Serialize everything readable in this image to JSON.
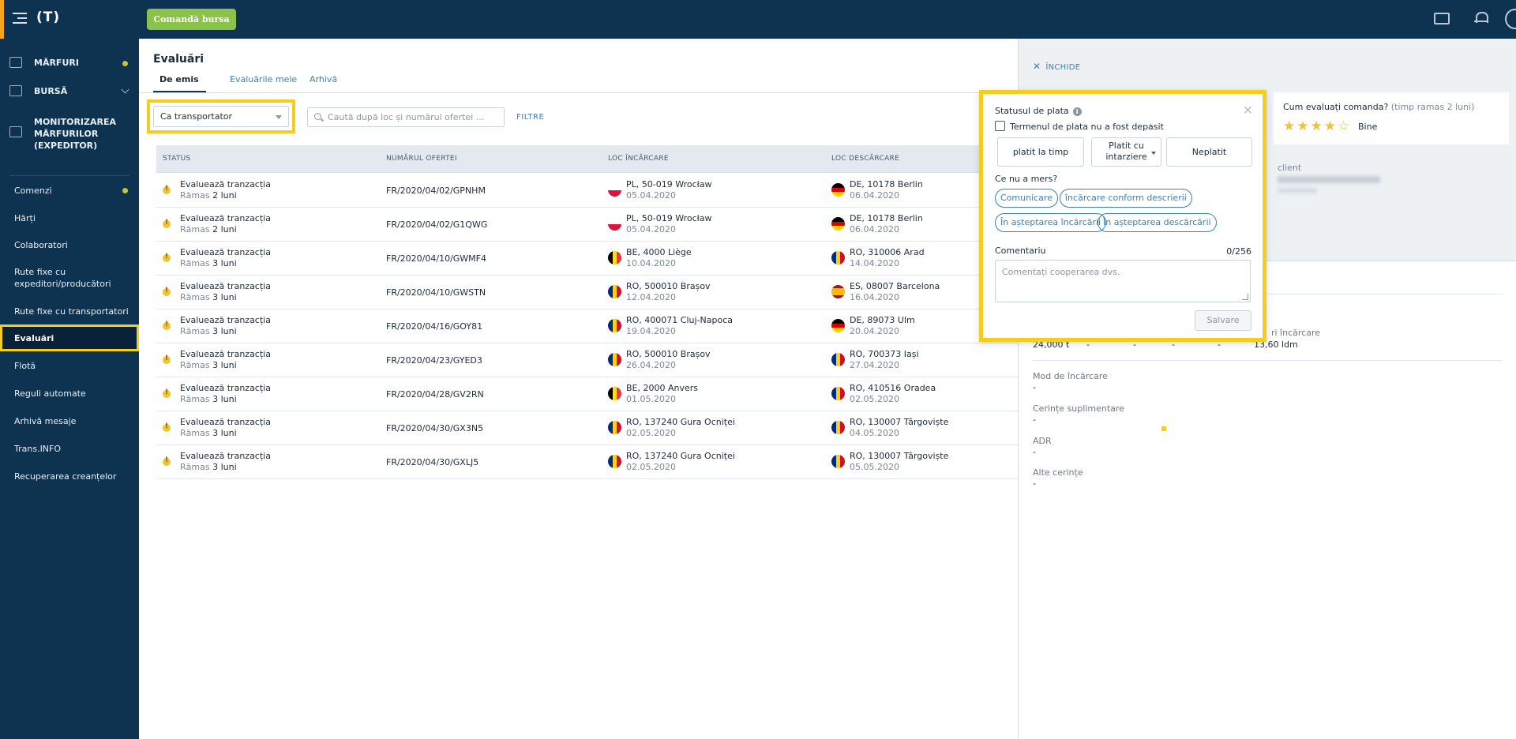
{
  "topbar": {
    "logo": "(T)",
    "bursa_button": "Comandă bursa",
    "colors": {
      "bg": "#0e3350",
      "accent": "#8bc34a"
    }
  },
  "sidebar": {
    "main_items": [
      {
        "label": "MĂRFURI",
        "icon": "goods-icon",
        "dot": true
      },
      {
        "label": "BURSĂ",
        "icon": "box-icon",
        "chevron": true
      },
      {
        "label": "MONITORIZAREA MĂRFURILOR (EXPEDITOR)",
        "icon": "tracking-icon"
      }
    ],
    "items": [
      {
        "label": "Comenzi",
        "dot": true
      },
      {
        "label": "Hărți"
      },
      {
        "label": "Colaboratori"
      },
      {
        "label": "Rute fixe cu expeditori/producători"
      },
      {
        "label": "Rute fixe cu transportatori"
      },
      {
        "label": "Evaluări",
        "active": true
      },
      {
        "label": "Flotă"
      },
      {
        "label": "Reguli automate"
      },
      {
        "label": "Arhivă mesaje"
      },
      {
        "label": "Trans.INFO"
      },
      {
        "label": "Recuperarea creanțelor"
      }
    ]
  },
  "main": {
    "title": "Evaluări",
    "tabs": [
      {
        "label": "De emis",
        "active": true
      },
      {
        "label": "Evaluările mele"
      },
      {
        "label": "Arhivă"
      }
    ],
    "role_select": "Ca transportator",
    "search_placeholder": "Caută după loc și numărul ofertei ...",
    "filters_label": "FILTRE",
    "columns": [
      "STATUS",
      "NUMĂRUL OFERTEI",
      "LOC ÎNCĂRCARE",
      "LOC DESCĂRCARE"
    ],
    "rows": [
      {
        "status": "Evaluează tranzacția",
        "remain_prefix": "Rămas",
        "remain": "2 luni",
        "offer": "FR/2020/04/02/GPNHM",
        "load": "PL, 50-019 Wrocław",
        "load_date": "05.04.2020",
        "load_flag": "pl",
        "unload": "DE, 10178 Berlin",
        "unload_date": "06.04.2020",
        "unload_flag": "de"
      },
      {
        "status": "Evaluează tranzacția",
        "remain_prefix": "Rămas",
        "remain": "2 luni",
        "offer": "FR/2020/04/02/G1QWG",
        "load": "PL, 50-019 Wrocław",
        "load_date": "05.04.2020",
        "load_flag": "pl",
        "unload": "DE, 10178 Berlin",
        "unload_date": "06.04.2020",
        "unload_flag": "de"
      },
      {
        "status": "Evaluează tranzacția",
        "remain_prefix": "Rămas",
        "remain": "3 luni",
        "offer": "FR/2020/04/10/GWMF4",
        "load": "BE, 4000 Liège",
        "load_date": "10.04.2020",
        "load_flag": "be",
        "unload": "RO, 310006 Arad",
        "unload_date": "14.04.2020",
        "unload_flag": "ro"
      },
      {
        "status": "Evaluează tranzacția",
        "remain_prefix": "Rămas",
        "remain": "3 luni",
        "offer": "FR/2020/04/10/GWSTN",
        "load": "RO, 500010 Brașov",
        "load_date": "12.04.2020",
        "load_flag": "ro",
        "unload": "ES, 08007 Barcelona",
        "unload_date": "16.04.2020",
        "unload_flag": "es"
      },
      {
        "status": "Evaluează tranzacția",
        "remain_prefix": "Rămas",
        "remain": "3 luni",
        "offer": "FR/2020/04/16/GOY81",
        "load": "RO, 400071 Cluj-Napoca",
        "load_date": "19.04.2020",
        "load_flag": "ro",
        "unload": "DE, 89073 Ulm",
        "unload_date": "20.04.2020",
        "unload_flag": "de"
      },
      {
        "status": "Evaluează tranzacția",
        "remain_prefix": "Rămas",
        "remain": "3 luni",
        "offer": "FR/2020/04/23/GYED3",
        "load": "RO, 500010 Brașov",
        "load_date": "26.04.2020",
        "load_flag": "ro",
        "unload": "RO, 700373 Iași",
        "unload_date": "27.04.2020",
        "unload_flag": "ro"
      },
      {
        "status": "Evaluează tranzacția",
        "remain_prefix": "Rămas",
        "remain": "3 luni",
        "offer": "FR/2020/04/28/GV2RN",
        "load": "BE, 2000 Anvers",
        "load_date": "01.05.2020",
        "load_flag": "be",
        "unload": "RO, 410516 Oradea",
        "unload_date": "02.05.2020",
        "unload_flag": "ro"
      },
      {
        "status": "Evaluează tranzacția",
        "remain_prefix": "Rămas",
        "remain": "3 luni",
        "offer": "FR/2020/04/30/GX3N5",
        "load": "RO, 137240 Gura Ocniței",
        "load_date": "02.05.2020",
        "load_flag": "ro",
        "unload": "RO, 130007 Târgoviște",
        "unload_date": "04.05.2020",
        "unload_flag": "ro"
      },
      {
        "status": "Evaluează tranzacția",
        "remain_prefix": "Rămas",
        "remain": "3 luni",
        "offer": "FR/2020/04/30/GXLJ5",
        "load": "RO, 137240 Gura Ocniței",
        "load_date": "02.05.2020",
        "load_flag": "ro",
        "unload": "RO, 130007 Târgoviște",
        "unload_date": "05.05.2020",
        "unload_flag": "ro"
      }
    ]
  },
  "panel": {
    "close_label": "ÎNCHIDE",
    "rating_question": "Cum evaluați comanda?",
    "rating_time": "(timp ramas 2 luni)",
    "rating_value": 4,
    "rating_max": 5,
    "rating_text": "Bine",
    "client_label": "client",
    "weight_value": "24,000 t",
    "dash1": "-",
    "dash2": "-",
    "dash3": "-",
    "dash4": "-",
    "load_meters_label": "ri încărcare",
    "load_meters_value": "13,60 ldm",
    "fields": [
      {
        "label": "Mod de încărcare",
        "value": "-"
      },
      {
        "label": "Cerințe suplimentare",
        "value": "-"
      },
      {
        "label": "ADR",
        "value": "-"
      },
      {
        "label": "Alte cerințe",
        "value": "-"
      }
    ]
  },
  "popup": {
    "title": "Statusul de plata",
    "checkbox_label": "Termenul de plata nu a fost depasit",
    "btn_paid": "platit la timp",
    "btn_late_line1": "Platit cu",
    "btn_late_line2": "intarziere",
    "btn_unpaid": "Neplatit",
    "question": "Ce nu a mers?",
    "chips": [
      "Comunicare",
      "încărcare conform descrierii",
      "În așteptarea încărcării",
      "În așteptarea descărcării"
    ],
    "comment_label": "Comentariu",
    "comment_count": "0/256",
    "comment_placeholder": "Comentați cooperarea dvs.",
    "save_label": "Salvare"
  }
}
